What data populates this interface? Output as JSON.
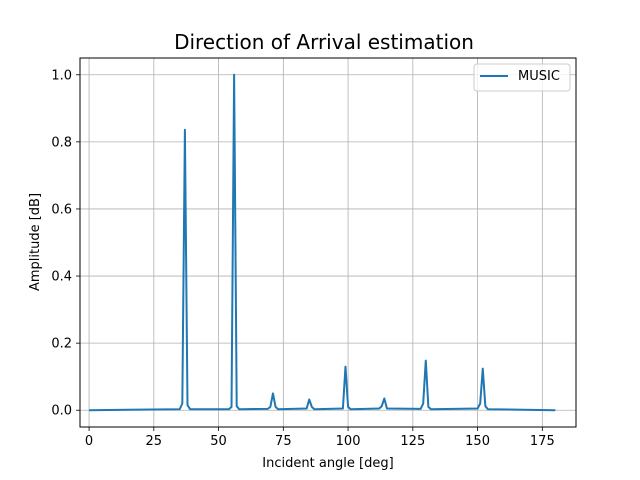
{
  "chart_data": {
    "type": "line",
    "title": "Direction of Arrival estimation",
    "xlabel": "Incident angle [deg]",
    "ylabel": "Amplitude [dB]",
    "xlim": [
      -3.5,
      188
    ],
    "ylim": [
      -0.05,
      1.05
    ],
    "xticks": [
      0,
      25,
      50,
      75,
      100,
      125,
      150,
      175
    ],
    "yticks": [
      0.0,
      0.2,
      0.4,
      0.6,
      0.8,
      1.0
    ],
    "xtick_labels": [
      "0",
      "25",
      "50",
      "75",
      "100",
      "125",
      "150",
      "175"
    ],
    "ytick_labels": [
      "0.0",
      "0.2",
      "0.4",
      "0.6",
      "0.8",
      "1.0"
    ],
    "grid": true,
    "legend_position": "upper right",
    "series": [
      {
        "name": "MUSIC",
        "color": "#1f77b4",
        "x": [
          0,
          35,
          36,
          37,
          38,
          39,
          54,
          55,
          56,
          57,
          58,
          69,
          70,
          71,
          72,
          73,
          84,
          85,
          86,
          87,
          98,
          99,
          100,
          101,
          112,
          113,
          114,
          115,
          128,
          129,
          130,
          131,
          132,
          150,
          151,
          152,
          153,
          154,
          180
        ],
        "y": [
          0.0,
          0.003,
          0.02,
          0.836,
          0.015,
          0.003,
          0.003,
          0.01,
          1.0,
          0.012,
          0.003,
          0.004,
          0.01,
          0.05,
          0.01,
          0.003,
          0.005,
          0.032,
          0.01,
          0.003,
          0.005,
          0.13,
          0.01,
          0.003,
          0.005,
          0.012,
          0.035,
          0.005,
          0.004,
          0.02,
          0.148,
          0.01,
          0.003,
          0.005,
          0.02,
          0.124,
          0.012,
          0.003,
          0.0
        ]
      }
    ]
  }
}
